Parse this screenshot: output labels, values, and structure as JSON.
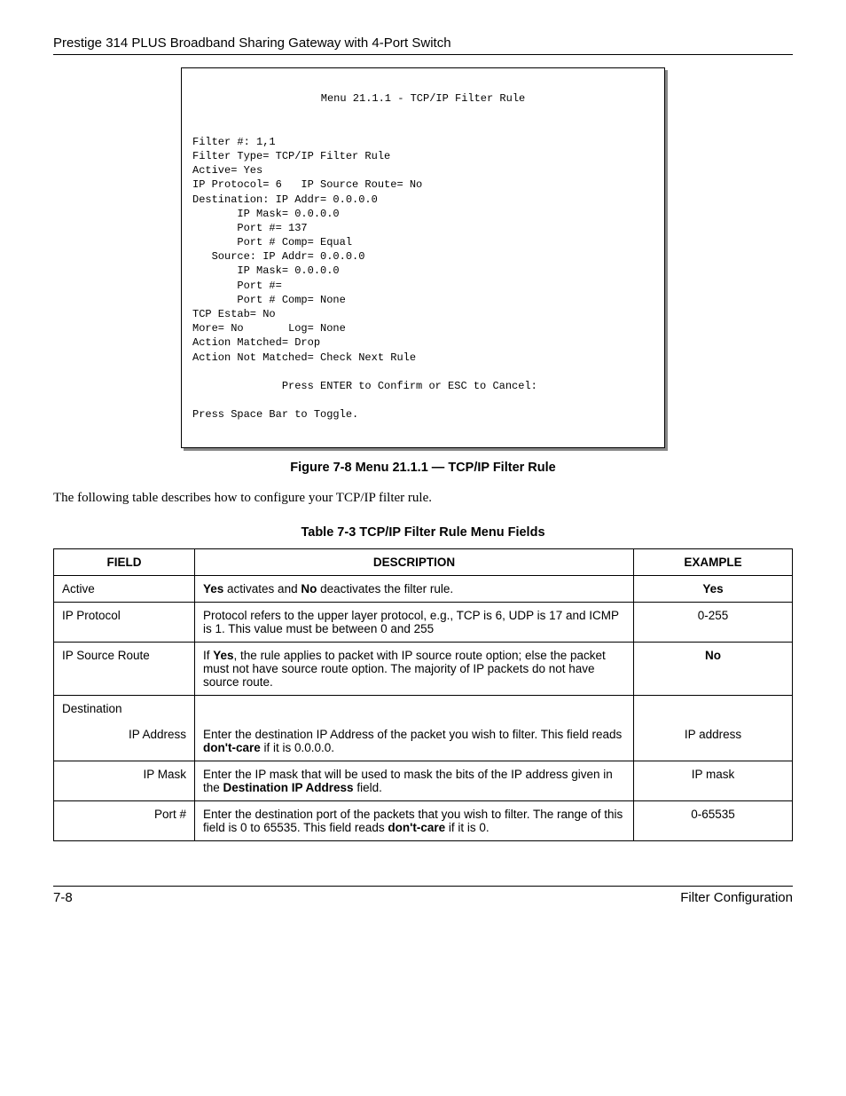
{
  "header": {
    "title": "Prestige 314 PLUS Broadband Sharing Gateway with 4-Port Switch"
  },
  "terminal": {
    "title": "Menu 21.1.1 - TCP/IP Filter Rule",
    "lines": [
      "Filter #: 1,1",
      "Filter Type= TCP/IP Filter Rule",
      "Active= Yes",
      "IP Protocol= 6   IP Source Route= No",
      "Destination: IP Addr= 0.0.0.0",
      "       IP Mask= 0.0.0.0",
      "       Port #= 137",
      "       Port # Comp= Equal",
      "   Source: IP Addr= 0.0.0.0",
      "       IP Mask= 0.0.0.0",
      "       Port #=",
      "       Port # Comp= None",
      "TCP Estab= No",
      "More= No       Log= None",
      "Action Matched= Drop",
      "Action Not Matched= Check Next Rule",
      "",
      "              Press ENTER to Confirm or ESC to Cancel:"
    ],
    "footer": "Press Space Bar to Toggle."
  },
  "figure_caption": "Figure 7-8 Menu 21.1.1 — TCP/IP Filter Rule",
  "intro_text": "The following table describes how to configure your TCP/IP filter rule.",
  "table_caption": "Table 7-3 TCP/IP Filter Rule Menu Fields",
  "table": {
    "headers": {
      "field": "FIELD",
      "description": "DESCRIPTION",
      "example": "EXAMPLE"
    },
    "rows": [
      {
        "field": "Active",
        "field_align": "left",
        "desc_html": "<b>Yes</b> activates and <b>No</b> deactivates the filter rule.",
        "example": "Yes",
        "example_bold": true
      },
      {
        "field": "IP Protocol",
        "field_align": "left",
        "desc_html": "Protocol refers to the upper layer protocol, e.g., TCP is 6, UDP is 17 and ICMP is 1. This value must be between 0 and 255",
        "example": "0-255",
        "example_bold": false
      },
      {
        "field": "IP Source Route",
        "field_align": "left",
        "desc_html": "If <b>Yes</b>, the rule applies to packet with IP source route option; else the packet must not have source route option. The majority of IP packets do not have source route.",
        "example": "No",
        "example_bold": true
      },
      {
        "field": "Destination",
        "field_align": "left",
        "group_header": true
      },
      {
        "field": "IP Address",
        "field_align": "right",
        "desc_html": "Enter the destination IP Address of the packet you wish to filter. This field reads <b>don't-care</b> if it is 0.0.0.0.",
        "example": "IP address",
        "example_bold": false
      },
      {
        "field": "IP Mask",
        "field_align": "right",
        "desc_html": "Enter the IP mask that will be used to mask the bits of the IP address given in the <b>Destination IP Address</b> field.",
        "example": "IP mask",
        "example_bold": false
      },
      {
        "field": "Port #",
        "field_align": "right",
        "desc_html": "Enter the destination port of the packets that you wish to filter. The range of this field is 0 to 65535. This field reads <b>don't-care</b> if it is 0.",
        "example": "0-65535",
        "example_bold": false
      }
    ]
  },
  "footer": {
    "left": "7-8",
    "right": "Filter Configuration"
  },
  "colors": {
    "text": "#000000",
    "background": "#ffffff",
    "shadow": "#888888"
  }
}
